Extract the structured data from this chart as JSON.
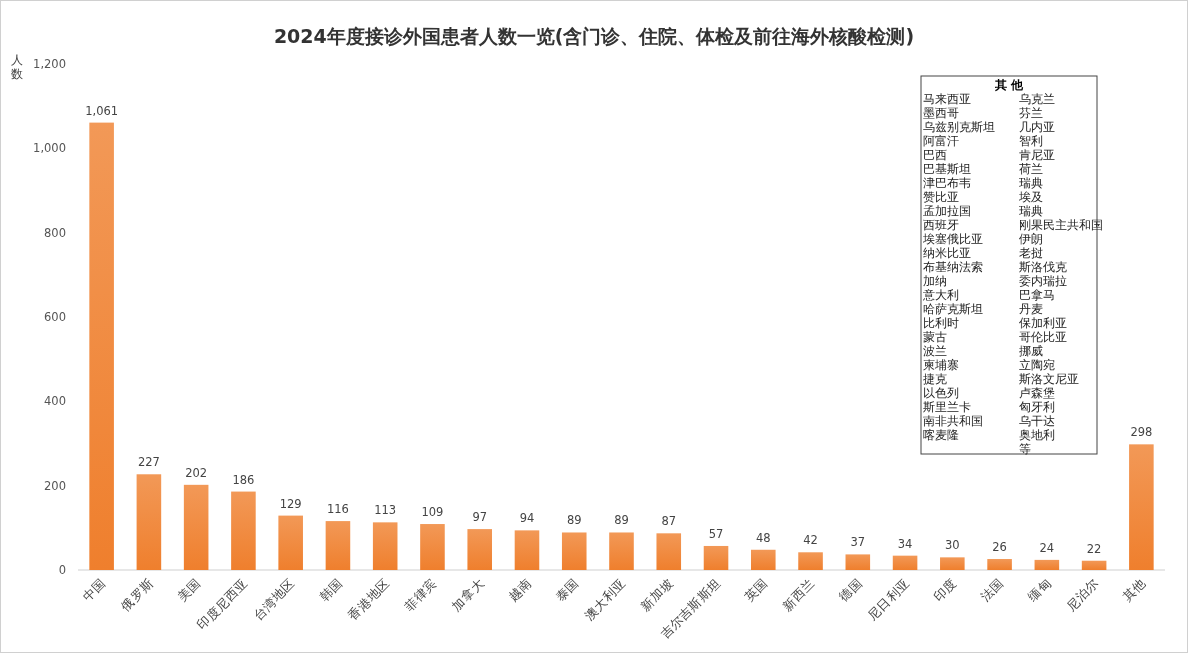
{
  "chart_data": {
    "type": "bar",
    "title": "2024年度接诊外国患者人数一览(含门诊、住院、体检及前往海外核酸检测)",
    "ylabel": "人数",
    "categories": [
      "中国",
      "俄罗斯",
      "美国",
      "印度尼西亚",
      "台湾地区",
      "韩国",
      "香港地区",
      "菲律宾",
      "加拿大",
      "越南",
      "泰国",
      "澳大利亚",
      "新加坡",
      "吉尔吉斯斯坦",
      "英国",
      "新西兰",
      "德国",
      "尼日利亚",
      "印度",
      "法国",
      "缅甸",
      "尼泊尔",
      "其他"
    ],
    "values": [
      1061,
      227,
      202,
      186,
      129,
      116,
      113,
      109,
      97,
      94,
      89,
      89,
      87,
      57,
      48,
      42,
      37,
      34,
      30,
      26,
      24,
      22,
      298
    ],
    "color": "#ef7f2d",
    "ylim": [
      0,
      1200
    ],
    "yticks": [
      0,
      200,
      400,
      600,
      800,
      {
        "value": 1000,
        "label": "1,000"
      },
      {
        "value": 1200,
        "label": "1,200"
      }
    ],
    "value_labels": [
      "1,061",
      "227",
      "202",
      "186",
      "129",
      "116",
      "113",
      "109",
      "97",
      "94",
      "89",
      "89",
      "87",
      "57",
      "48",
      "42",
      "37",
      "34",
      "30",
      "26",
      "24",
      "22",
      "298"
    ],
    "annotations": [
      "其 他",
      "马来西亚",
      "墨西哥",
      "乌兹别克斯坦",
      "阿富汗",
      "巴西",
      "巴基斯坦",
      "津巴布韦",
      "赞比亚",
      "孟加拉国",
      "西班牙",
      "埃塞俄比亚",
      "纳米比亚",
      "布基纳法索",
      "加纳",
      "意大利",
      "哈萨克斯坦",
      "比利时",
      "蒙古",
      "波兰",
      "柬埔寨",
      "捷克",
      "以色列",
      "斯里兰卡",
      "南非共和国",
      "喀麦隆",
      "乌克兰",
      "芬兰",
      "几内亚",
      "智利",
      "肯尼亚",
      "荷兰",
      "瑞典",
      "埃及",
      "瑞典",
      "刚果民主共和国",
      "伊朗",
      "老挝",
      "斯洛伐克",
      "委内瑞拉",
      "巴拿马",
      "丹麦",
      "保加利亚",
      "哥伦比亚",
      "挪威",
      "立陶宛",
      "斯洛文尼亚",
      "卢森堡",
      "匈牙利",
      "乌干达",
      "奥地利",
      "等"
    ]
  }
}
